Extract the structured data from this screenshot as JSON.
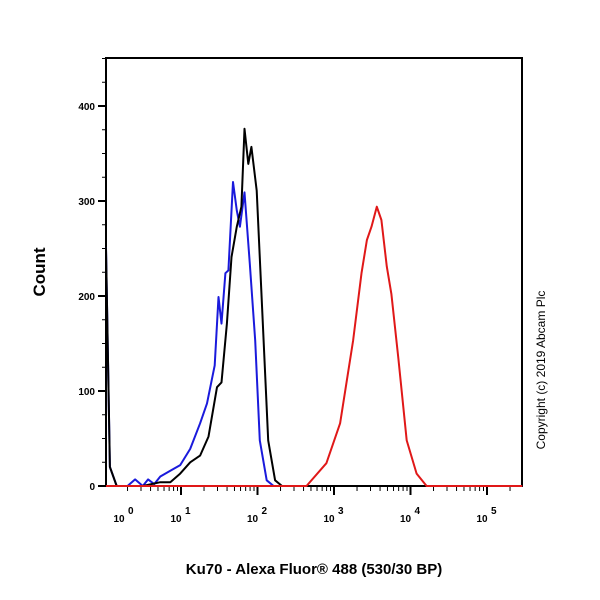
{
  "chart_data": {
    "type": "line",
    "title": "",
    "xlabel": "Ku70 - Alexa Fluor® 488 (530/30 BP)",
    "ylabel": "Count",
    "x_scale": "log10",
    "xlim_log10": [
      0,
      5.46
    ],
    "ylim": [
      0,
      450
    ],
    "x_ticks": [
      {
        "base": "10",
        "exp": "0",
        "log": 0
      },
      {
        "base": "10",
        "exp": "1",
        "log": 1
      },
      {
        "base": "10",
        "exp": "2",
        "log": 2
      },
      {
        "base": "10",
        "exp": "3",
        "log": 3
      },
      {
        "base": "10",
        "exp": "4",
        "log": 4
      },
      {
        "base": "10",
        "exp": "5",
        "log": 5
      }
    ],
    "y_ticks": [
      "0",
      "100",
      "200",
      "300",
      "400"
    ],
    "y_tick_values": [
      0,
      100,
      200,
      300,
      400
    ],
    "grid": false,
    "legend": "none",
    "annotation": "Copyright (c) 2019 Abcam Plc",
    "series": [
      {
        "name": "blue",
        "color": "#1a1adc",
        "log_x": [
          0.0,
          0.02,
          0.07,
          0.16,
          0.3,
          0.4,
          0.5,
          0.57,
          0.65,
          0.73,
          0.86,
          0.99,
          1.12,
          1.25,
          1.34,
          1.44,
          1.49,
          1.53,
          1.58,
          1.62,
          1.68,
          1.73,
          1.77,
          1.83,
          1.9,
          1.97,
          2.03,
          2.12,
          2.21,
          2.5,
          5.46
        ],
        "counts": [
          0,
          250,
          20,
          0,
          0,
          7,
          0,
          7,
          2,
          10,
          16,
          22,
          39,
          66,
          87,
          127,
          199,
          171,
          224,
          227,
          320,
          290,
          273,
          309,
          234,
          153,
          48,
          6,
          0,
          0,
          0
        ]
      },
      {
        "name": "black",
        "color": "#000000",
        "log_x": [
          0.0,
          0.02,
          0.07,
          0.16,
          0.5,
          0.73,
          0.86,
          0.99,
          1.12,
          1.25,
          1.36,
          1.47,
          1.53,
          1.6,
          1.66,
          1.73,
          1.79,
          1.83,
          1.88,
          1.92,
          1.99,
          2.05,
          2.14,
          2.23,
          2.32,
          2.6,
          5.46
        ],
        "counts": [
          0,
          250,
          20,
          0,
          0,
          4,
          4,
          13,
          25,
          32,
          52,
          104,
          109,
          171,
          241,
          273,
          294,
          376,
          339,
          357,
          311,
          206,
          48,
          6,
          0,
          0,
          0
        ]
      },
      {
        "name": "red",
        "color": "#e01818",
        "log_x": [
          0.0,
          2.64,
          2.9,
          3.08,
          3.25,
          3.36,
          3.43,
          3.49,
          3.56,
          3.62,
          3.69,
          3.75,
          3.84,
          3.95,
          4.08,
          4.21,
          5.46
        ],
        "counts": [
          0,
          0,
          24,
          66,
          153,
          224,
          259,
          273,
          294,
          280,
          231,
          202,
          135,
          48,
          13,
          0,
          0
        ]
      }
    ]
  }
}
